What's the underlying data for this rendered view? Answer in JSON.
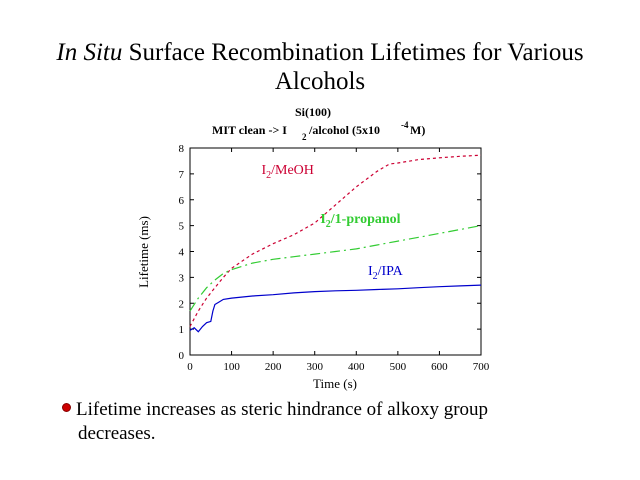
{
  "slide": {
    "title_italic": "In Situ",
    "title_rest_line1": " Surface Recombination Lifetimes for Various",
    "title_line2": "Alcohols",
    "bullet_line1": "Lifetime increases as steric hindrance of alkoxy group",
    "bullet_line2": "decreases."
  },
  "chart_data": {
    "type": "line",
    "subtitle_line1": "Si(100)",
    "subtitle_line2_a": "MIT clean -> I",
    "subtitle_line2_sub": "2",
    "subtitle_line2_b": "/alcohol (5x10",
    "subtitle_line2_sup": "-4",
    "subtitle_line2_c": "M)",
    "xlabel": "Time (s)",
    "ylabel": "Lifetime (ms)",
    "xlim": [
      0,
      700
    ],
    "ylim": [
      0,
      8
    ],
    "xticks": [
      0,
      100,
      200,
      300,
      400,
      500,
      600,
      700
    ],
    "yticks": [
      0,
      1,
      2,
      3,
      4,
      5,
      6,
      7,
      8
    ],
    "grid": false,
    "series": [
      {
        "name": "I2/MeOH",
        "label_main": "I",
        "label_sub": "2",
        "label_rest": "/MeOH",
        "color": "#cc0033",
        "dash": "3,3",
        "x": [
          0,
          20,
          40,
          60,
          80,
          100,
          150,
          200,
          250,
          300,
          350,
          400,
          450,
          480,
          500,
          550,
          600,
          650,
          700
        ],
        "y": [
          1.1,
          1.7,
          2.2,
          2.6,
          3.0,
          3.35,
          3.9,
          4.3,
          4.65,
          5.1,
          5.8,
          6.5,
          7.1,
          7.38,
          7.42,
          7.55,
          7.62,
          7.68,
          7.72
        ]
      },
      {
        "name": "I2/1-propanol",
        "label_main": "I",
        "label_sub": "2",
        "label_rest": "/1-propanol",
        "color": "#33cc33",
        "dash": "10,4,2,4",
        "x": [
          0,
          20,
          40,
          60,
          80,
          100,
          150,
          200,
          250,
          300,
          350,
          400,
          450,
          500,
          550,
          600,
          650,
          700
        ],
        "y": [
          1.7,
          2.2,
          2.6,
          2.9,
          3.15,
          3.3,
          3.55,
          3.7,
          3.8,
          3.9,
          4.0,
          4.1,
          4.25,
          4.4,
          4.55,
          4.7,
          4.85,
          5.0
        ]
      },
      {
        "name": "I2/IPA",
        "label_main": "I",
        "label_sub": "2",
        "label_rest": "/IPA",
        "color": "#0000cc",
        "dash": "",
        "x": [
          0,
          10,
          20,
          30,
          40,
          50,
          55,
          60,
          70,
          80,
          100,
          150,
          200,
          250,
          300,
          350,
          400,
          450,
          500,
          550,
          600,
          650,
          700
        ],
        "y": [
          0.95,
          1.05,
          0.9,
          1.1,
          1.25,
          1.3,
          1.7,
          1.95,
          2.05,
          2.15,
          2.2,
          2.28,
          2.33,
          2.4,
          2.45,
          2.48,
          2.5,
          2.53,
          2.56,
          2.6,
          2.64,
          2.67,
          2.7
        ]
      }
    ]
  }
}
